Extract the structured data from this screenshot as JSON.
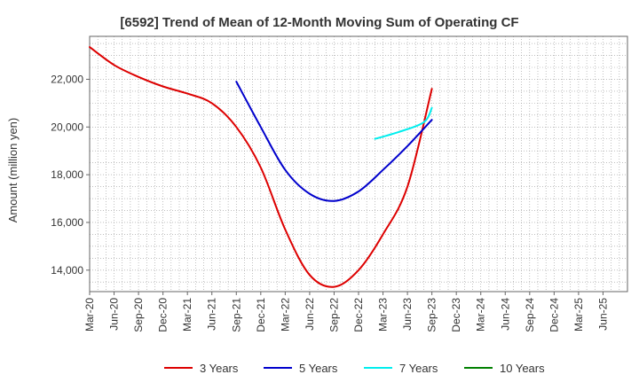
{
  "chart_data": {
    "type": "line",
    "title": "[6592]  Trend of Mean of 12-Month Moving Sum of Operating CF",
    "xlabel": "",
    "ylabel": "Amount (million yen)",
    "ylim": [
      13100,
      23800
    ],
    "yticks": [
      14000,
      16000,
      18000,
      20000,
      22000
    ],
    "ytick_labels": [
      "14,000",
      "16,000",
      "18,000",
      "20,000",
      "22,000"
    ],
    "x_tick_labels": [
      "Mar-20",
      "Jun-20",
      "Sep-20",
      "Dec-20",
      "Mar-21",
      "Jun-21",
      "Sep-21",
      "Dec-21",
      "Mar-22",
      "Jun-22",
      "Sep-22",
      "Dec-22",
      "Mar-23",
      "Jun-23",
      "Sep-23",
      "Dec-23",
      "Mar-24",
      "Jun-24",
      "Sep-24",
      "Dec-24",
      "Mar-25",
      "Jun-25"
    ],
    "grid": true,
    "legend_position": "bottom",
    "series": [
      {
        "name": "3 Years",
        "color": "#dd0000",
        "points": [
          [
            0,
            23350
          ],
          [
            1,
            22600
          ],
          [
            2,
            22100
          ],
          [
            3,
            21700
          ],
          [
            4,
            21400
          ],
          [
            5,
            21000
          ],
          [
            6,
            20000
          ],
          [
            7,
            18300
          ],
          [
            8,
            15700
          ],
          [
            9,
            13800
          ],
          [
            10,
            13300
          ],
          [
            11,
            14000
          ],
          [
            12,
            15500
          ],
          [
            13,
            17500
          ],
          [
            14,
            21600
          ]
        ]
      },
      {
        "name": "5 Years",
        "color": "#0000cc",
        "points": [
          [
            6,
            21900
          ],
          [
            7,
            20000
          ],
          [
            8,
            18200
          ],
          [
            9,
            17200
          ],
          [
            10,
            16900
          ],
          [
            11,
            17300
          ],
          [
            12,
            18200
          ],
          [
            13,
            19200
          ],
          [
            14,
            20300
          ]
        ]
      },
      {
        "name": "7 Years",
        "color": "#00eeee",
        "points": [
          [
            11.67,
            19500
          ],
          [
            12.67,
            19800
          ],
          [
            13.67,
            20200
          ],
          [
            14,
            20800
          ]
        ]
      },
      {
        "name": "10 Years",
        "color": "#008000",
        "points": []
      }
    ]
  }
}
